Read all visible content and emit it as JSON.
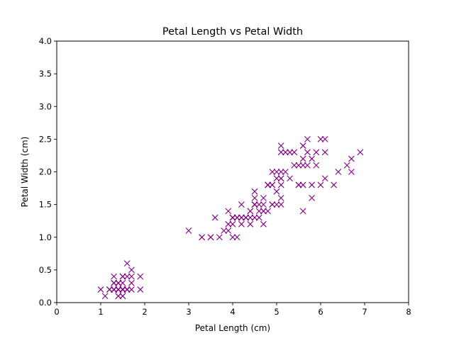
{
  "chart_data": {
    "type": "scatter",
    "title": "Petal Length vs Petal Width",
    "xlabel": "Petal Length (cm)",
    "ylabel": "Petal Width (cm)",
    "xlim": [
      0,
      8
    ],
    "ylim": [
      0,
      4.0
    ],
    "x_ticks": [
      "0",
      "1",
      "2",
      "3",
      "4",
      "5",
      "6",
      "7",
      "8"
    ],
    "y_ticks": [
      "0.0",
      "0.5",
      "1.0",
      "1.5",
      "2.0",
      "2.5",
      "3.0",
      "3.5",
      "4.0"
    ],
    "grid": false,
    "marker": "x",
    "color": "#800080",
    "points": [
      [
        1.4,
        0.2
      ],
      [
        1.4,
        0.2
      ],
      [
        1.3,
        0.2
      ],
      [
        1.5,
        0.2
      ],
      [
        1.4,
        0.2
      ],
      [
        1.7,
        0.4
      ],
      [
        1.4,
        0.3
      ],
      [
        1.5,
        0.2
      ],
      [
        1.4,
        0.2
      ],
      [
        1.5,
        0.1
      ],
      [
        1.5,
        0.2
      ],
      [
        1.6,
        0.2
      ],
      [
        1.4,
        0.1
      ],
      [
        1.1,
        0.1
      ],
      [
        1.2,
        0.2
      ],
      [
        1.5,
        0.4
      ],
      [
        1.3,
        0.4
      ],
      [
        1.4,
        0.3
      ],
      [
        1.7,
        0.3
      ],
      [
        1.5,
        0.3
      ],
      [
        1.7,
        0.2
      ],
      [
        1.5,
        0.4
      ],
      [
        1.0,
        0.2
      ],
      [
        1.7,
        0.5
      ],
      [
        1.9,
        0.2
      ],
      [
        1.6,
        0.2
      ],
      [
        1.6,
        0.4
      ],
      [
        1.5,
        0.2
      ],
      [
        1.4,
        0.2
      ],
      [
        1.6,
        0.2
      ],
      [
        1.6,
        0.2
      ],
      [
        1.5,
        0.4
      ],
      [
        1.5,
        0.1
      ],
      [
        1.4,
        0.2
      ],
      [
        1.5,
        0.2
      ],
      [
        1.2,
        0.2
      ],
      [
        1.3,
        0.2
      ],
      [
        1.4,
        0.1
      ],
      [
        1.3,
        0.2
      ],
      [
        1.5,
        0.2
      ],
      [
        1.3,
        0.3
      ],
      [
        1.3,
        0.3
      ],
      [
        1.3,
        0.2
      ],
      [
        1.6,
        0.6
      ],
      [
        1.9,
        0.4
      ],
      [
        1.4,
        0.3
      ],
      [
        1.6,
        0.2
      ],
      [
        1.4,
        0.2
      ],
      [
        1.5,
        0.2
      ],
      [
        1.4,
        0.2
      ],
      [
        4.7,
        1.4
      ],
      [
        4.5,
        1.5
      ],
      [
        4.9,
        1.5
      ],
      [
        4.0,
        1.3
      ],
      [
        4.6,
        1.5
      ],
      [
        4.5,
        1.3
      ],
      [
        4.7,
        1.6
      ],
      [
        3.3,
        1.0
      ],
      [
        4.6,
        1.3
      ],
      [
        3.9,
        1.4
      ],
      [
        3.5,
        1.0
      ],
      [
        4.2,
        1.5
      ],
      [
        4.0,
        1.0
      ],
      [
        4.7,
        1.4
      ],
      [
        3.6,
        1.3
      ],
      [
        4.4,
        1.4
      ],
      [
        4.5,
        1.5
      ],
      [
        4.1,
        1.0
      ],
      [
        4.5,
        1.5
      ],
      [
        3.9,
        1.1
      ],
      [
        4.8,
        1.8
      ],
      [
        4.0,
        1.3
      ],
      [
        4.9,
        1.5
      ],
      [
        4.7,
        1.2
      ],
      [
        4.3,
        1.3
      ],
      [
        4.4,
        1.4
      ],
      [
        4.8,
        1.4
      ],
      [
        5.0,
        1.7
      ],
      [
        4.5,
        1.5
      ],
      [
        3.5,
        1.0
      ],
      [
        3.8,
        1.1
      ],
      [
        3.7,
        1.0
      ],
      [
        3.9,
        1.2
      ],
      [
        5.1,
        1.6
      ],
      [
        4.5,
        1.5
      ],
      [
        4.5,
        1.6
      ],
      [
        4.7,
        1.5
      ],
      [
        4.4,
        1.3
      ],
      [
        4.1,
        1.3
      ],
      [
        4.0,
        1.3
      ],
      [
        4.4,
        1.2
      ],
      [
        4.6,
        1.4
      ],
      [
        4.0,
        1.2
      ],
      [
        3.3,
        1.0
      ],
      [
        4.2,
        1.3
      ],
      [
        4.2,
        1.2
      ],
      [
        4.2,
        1.3
      ],
      [
        4.3,
        1.3
      ],
      [
        3.0,
        1.1
      ],
      [
        4.1,
        1.3
      ],
      [
        6.0,
        2.5
      ],
      [
        5.1,
        1.9
      ],
      [
        5.9,
        2.1
      ],
      [
        5.6,
        1.8
      ],
      [
        5.8,
        2.2
      ],
      [
        6.6,
        2.1
      ],
      [
        4.5,
        1.7
      ],
      [
        6.3,
        1.8
      ],
      [
        5.8,
        1.8
      ],
      [
        6.1,
        2.5
      ],
      [
        5.1,
        2.0
      ],
      [
        5.3,
        1.9
      ],
      [
        5.5,
        2.1
      ],
      [
        5.0,
        2.0
      ],
      [
        5.1,
        2.4
      ],
      [
        5.3,
        2.3
      ],
      [
        5.5,
        1.8
      ],
      [
        6.7,
        2.2
      ],
      [
        6.9,
        2.3
      ],
      [
        5.0,
        1.5
      ],
      [
        5.7,
        2.3
      ],
      [
        4.9,
        2.0
      ],
      [
        6.7,
        2.0
      ],
      [
        4.9,
        1.8
      ],
      [
        5.7,
        2.1
      ],
      [
        6.0,
        1.8
      ],
      [
        4.8,
        1.8
      ],
      [
        4.9,
        1.8
      ],
      [
        5.6,
        2.1
      ],
      [
        5.8,
        1.6
      ],
      [
        6.1,
        1.9
      ],
      [
        6.4,
        2.0
      ],
      [
        5.6,
        2.2
      ],
      [
        5.1,
        1.5
      ],
      [
        5.6,
        1.4
      ],
      [
        6.1,
        2.3
      ],
      [
        5.6,
        2.4
      ],
      [
        5.5,
        1.8
      ],
      [
        4.8,
        1.8
      ],
      [
        5.4,
        2.1
      ],
      [
        5.6,
        2.4
      ],
      [
        5.1,
        2.3
      ],
      [
        5.1,
        1.9
      ],
      [
        5.9,
        2.3
      ],
      [
        5.7,
        2.5
      ],
      [
        5.2,
        2.3
      ],
      [
        5.0,
        1.9
      ],
      [
        5.2,
        2.0
      ],
      [
        5.4,
        2.3
      ],
      [
        5.1,
        1.8
      ]
    ]
  }
}
